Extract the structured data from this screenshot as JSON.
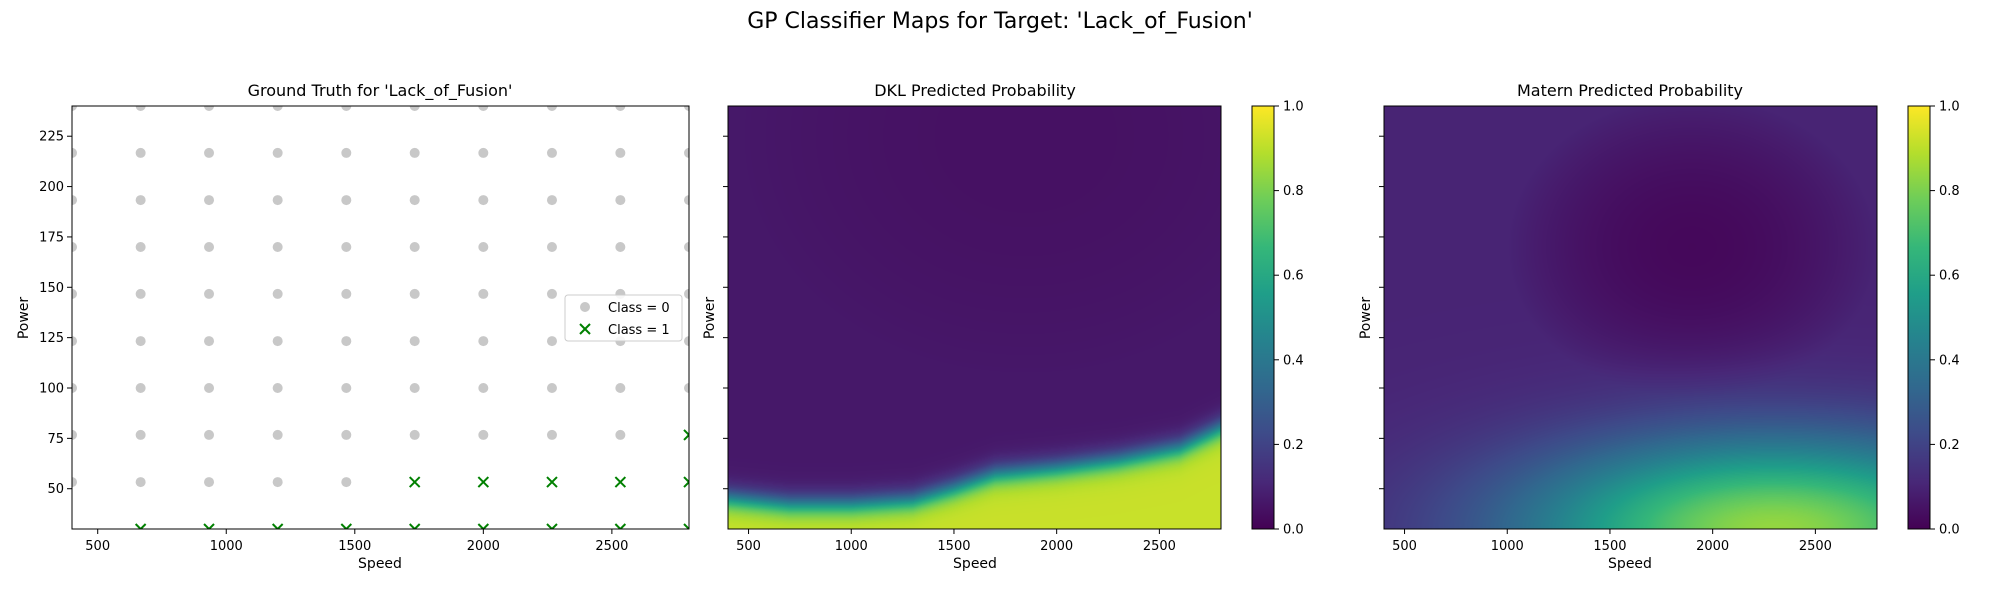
{
  "figure": {
    "suptitle": "GP Classifier Maps for Target: 'Lack_of_Fusion'"
  },
  "chart_data": [
    {
      "type": "scatter",
      "title": "Ground Truth for 'Lack_of_Fusion'",
      "xlabel": "Speed",
      "ylabel": "Power",
      "xlim": [
        400,
        2800
      ],
      "ylim": [
        30,
        240
      ],
      "xticks": [
        500,
        1000,
        1500,
        2000,
        2500
      ],
      "yticks": [
        50,
        75,
        100,
        125,
        150,
        175,
        200,
        225
      ],
      "legend_position": "center-right",
      "grid": false,
      "grid_x": [
        400,
        667,
        933,
        1200,
        1467,
        1733,
        2000,
        2267,
        2533,
        2800
      ],
      "grid_y": [
        30,
        53.3,
        76.7,
        100,
        123.3,
        146.7,
        170,
        193.3,
        216.7,
        240
      ],
      "series": [
        {
          "name": "Class = 0",
          "marker": "circle",
          "color": "#c8c8c8",
          "points": [
            [
              400,
              53.3
            ],
            [
              667,
              53.3
            ],
            [
              933,
              53.3
            ],
            [
              1200,
              53.3
            ],
            [
              1467,
              53.3
            ],
            [
              400,
              76.7
            ],
            [
              667,
              76.7
            ],
            [
              933,
              76.7
            ],
            [
              1200,
              76.7
            ],
            [
              1467,
              76.7
            ],
            [
              1733,
              76.7
            ],
            [
              2000,
              76.7
            ],
            [
              2267,
              76.7
            ],
            [
              2533,
              76.7
            ],
            [
              400,
              100
            ],
            [
              667,
              100
            ],
            [
              933,
              100
            ],
            [
              1200,
              100
            ],
            [
              1467,
              100
            ],
            [
              1733,
              100
            ],
            [
              2000,
              100
            ],
            [
              2267,
              100
            ],
            [
              2533,
              100
            ],
            [
              2800,
              100
            ],
            [
              400,
              123.3
            ],
            [
              667,
              123.3
            ],
            [
              933,
              123.3
            ],
            [
              1200,
              123.3
            ],
            [
              1467,
              123.3
            ],
            [
              1733,
              123.3
            ],
            [
              2000,
              123.3
            ],
            [
              2267,
              123.3
            ],
            [
              2533,
              123.3
            ],
            [
              2800,
              123.3
            ],
            [
              400,
              146.7
            ],
            [
              667,
              146.7
            ],
            [
              933,
              146.7
            ],
            [
              1200,
              146.7
            ],
            [
              1467,
              146.7
            ],
            [
              1733,
              146.7
            ],
            [
              2000,
              146.7
            ],
            [
              2267,
              146.7
            ],
            [
              2533,
              146.7
            ],
            [
              2800,
              146.7
            ],
            [
              400,
              170
            ],
            [
              667,
              170
            ],
            [
              933,
              170
            ],
            [
              1200,
              170
            ],
            [
              1467,
              170
            ],
            [
              1733,
              170
            ],
            [
              2000,
              170
            ],
            [
              2267,
              170
            ],
            [
              2533,
              170
            ],
            [
              2800,
              170
            ],
            [
              400,
              193.3
            ],
            [
              667,
              193.3
            ],
            [
              933,
              193.3
            ],
            [
              1200,
              193.3
            ],
            [
              1467,
              193.3
            ],
            [
              1733,
              193.3
            ],
            [
              2000,
              193.3
            ],
            [
              2267,
              193.3
            ],
            [
              2533,
              193.3
            ],
            [
              2800,
              193.3
            ],
            [
              400,
              216.7
            ],
            [
              667,
              216.7
            ],
            [
              933,
              216.7
            ],
            [
              1200,
              216.7
            ],
            [
              1467,
              216.7
            ],
            [
              1733,
              216.7
            ],
            [
              2000,
              216.7
            ],
            [
              2267,
              216.7
            ],
            [
              2533,
              216.7
            ],
            [
              2800,
              216.7
            ],
            [
              400,
              240
            ],
            [
              667,
              240
            ],
            [
              933,
              240
            ],
            [
              1200,
              240
            ],
            [
              1467,
              240
            ],
            [
              1733,
              240
            ],
            [
              2000,
              240
            ],
            [
              2267,
              240
            ],
            [
              2533,
              240
            ],
            [
              2800,
              240
            ]
          ]
        },
        {
          "name": "Class = 1",
          "marker": "x",
          "color": "#008000",
          "points": [
            [
              667,
              30
            ],
            [
              933,
              30
            ],
            [
              1200,
              30
            ],
            [
              1467,
              30
            ],
            [
              1733,
              30
            ],
            [
              2000,
              30
            ],
            [
              2267,
              30
            ],
            [
              2533,
              30
            ],
            [
              2800,
              30
            ],
            [
              1733,
              53.3
            ],
            [
              2000,
              53.3
            ],
            [
              2267,
              53.3
            ],
            [
              2533,
              53.3
            ],
            [
              2800,
              53.3
            ],
            [
              2800,
              76.7
            ]
          ]
        }
      ]
    },
    {
      "type": "heatmap",
      "title": "DKL Predicted Probability",
      "xlabel": "Speed",
      "ylabel": "Power",
      "xlim": [
        400,
        2800
      ],
      "ylim": [
        30,
        240
      ],
      "xticks": [
        500,
        1000,
        1500,
        2000,
        2500
      ],
      "yticks": [
        50,
        75,
        100,
        125,
        150,
        175,
        200,
        225
      ],
      "show_ytick_labels": false,
      "colorbar": {
        "range": [
          0,
          1
        ],
        "ticks": [
          0.0,
          0.2,
          0.4,
          0.6,
          0.8,
          1.0
        ],
        "colormap": "viridis"
      },
      "model": "dkl",
      "boundary_speed": [
        400,
        700,
        1000,
        1300,
        1500,
        1700,
        2000,
        2300,
        2600,
        2800
      ],
      "boundary_power": [
        45,
        42,
        42,
        44,
        50,
        57,
        60,
        64,
        70,
        80
      ],
      "boundary_width": 3.2,
      "high_value": 0.92,
      "low_value": 0.0,
      "low_value_center": [
        1850,
        225
      ]
    },
    {
      "type": "heatmap",
      "title": "Matern Predicted Probability",
      "xlabel": "Speed",
      "ylabel": "Power",
      "xlim": [
        400,
        2800
      ],
      "ylim": [
        30,
        240
      ],
      "xticks": [
        500,
        1000,
        1500,
        2000,
        2500
      ],
      "yticks": [
        50,
        75,
        100,
        125,
        150,
        175,
        200,
        225
      ],
      "show_ytick_labels": false,
      "colorbar": {
        "range": [
          0,
          1
        ],
        "ticks": [
          0.0,
          0.2,
          0.4,
          0.6,
          0.8,
          1.0
        ],
        "colormap": "viridis"
      },
      "model": "matern",
      "min_center": [
        1900,
        170
      ],
      "peak_center": [
        2300,
        30
      ],
      "peak_value": 0.82,
      "background_value": 0.08
    }
  ]
}
